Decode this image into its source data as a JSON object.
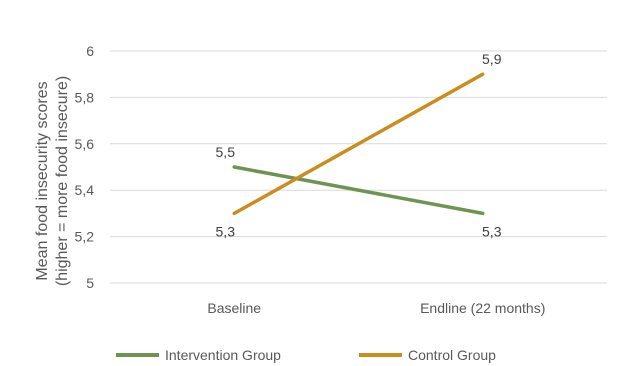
{
  "chart_data": {
    "type": "line",
    "categories": [
      "Baseline",
      "Endline (22 months)"
    ],
    "series": [
      {
        "name": "Intervention Group",
        "values": [
          5.5,
          5.3
        ],
        "labels": [
          "5,5",
          "5,3"
        ],
        "color": "#6e9452"
      },
      {
        "name": "Control Group",
        "values": [
          5.3,
          5.9
        ],
        "labels": [
          "5,3",
          "5,9"
        ],
        "color": "#cc8d1f"
      }
    ],
    "ylabel_lines": [
      "Mean food insecurity scores",
      "(higher = more food insecure)"
    ],
    "xlabel": "",
    "ylim": [
      5,
      6
    ],
    "yticks": [
      5,
      5.2,
      5.4,
      5.6,
      5.8,
      6
    ],
    "ytick_labels": [
      "5",
      "5,2",
      "5,4",
      "5,6",
      "5,8",
      "6"
    ],
    "grid": true,
    "legend_position": "bottom"
  }
}
